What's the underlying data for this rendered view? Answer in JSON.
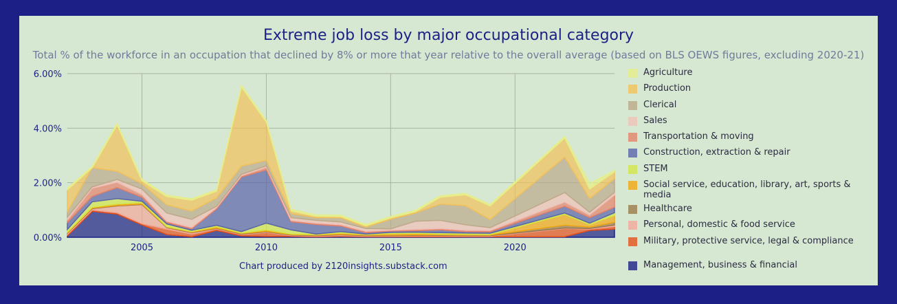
{
  "chart_data": {
    "type": "area",
    "title": "Extreme job loss by major occupational category",
    "subtitle": "Total % of the workforce in an occupation that declined by 8% or more that year relative to the overall average (based on BLS OEWS figures, excluding 2020-21)",
    "credit": "Chart produced by 2120insights.substack.com",
    "x": [
      2002,
      2003,
      2004,
      2005,
      2006,
      2007,
      2008,
      2009,
      2010,
      2011,
      2012,
      2013,
      2014,
      2015,
      2016,
      2017,
      2018,
      2019,
      2022,
      2023,
      2024
    ],
    "xticks": [
      "2005",
      "2010",
      "2015",
      "2020"
    ],
    "xtick_values": [
      2005,
      2010,
      2015,
      2020
    ],
    "xlim": [
      2002,
      2024
    ],
    "ylim": [
      0,
      6
    ],
    "yticks": [
      "0.00%",
      "2.00%",
      "4.00%",
      "6.00%"
    ],
    "ytick_values": [
      0,
      2,
      4,
      6
    ],
    "stacked": true,
    "legend_position": "right",
    "series": [
      {
        "name": "Management, business & financial",
        "color": "#1b1f86",
        "values": [
          0.05,
          0.95,
          0.85,
          0.45,
          0.1,
          0.02,
          0.25,
          0.05,
          0.03,
          0.03,
          0.02,
          0.03,
          0.02,
          0.02,
          0.02,
          0.02,
          0.02,
          0.02,
          0.02,
          0.25,
          0.3
        ]
      },
      {
        "name": "Military, protective service, legal & compliance",
        "color": "#e5501b",
        "values": [
          0.05,
          0.05,
          0.05,
          0.05,
          0.2,
          0.1,
          0.05,
          0.05,
          0.15,
          0.03,
          0.02,
          0.03,
          0.02,
          0.02,
          0.03,
          0.03,
          0.02,
          0.02,
          0.3,
          0.05,
          0.1
        ]
      },
      {
        "name": "Personal, domestic & food service",
        "color": "#f2a89a",
        "values": [
          0.05,
          0.05,
          0.25,
          0.7,
          0.05,
          0.05,
          0.02,
          0.02,
          0.02,
          0.02,
          0.02,
          0.03,
          0.02,
          0.02,
          0.02,
          0.02,
          0.02,
          0.02,
          0.02,
          0.02,
          0.05
        ]
      },
      {
        "name": "Healthcare",
        "color": "#9b7a4a",
        "values": [
          0.02,
          0.02,
          0.02,
          0.02,
          0.02,
          0.02,
          0.02,
          0.02,
          0.02,
          0.02,
          0.02,
          0.02,
          0.02,
          0.02,
          0.02,
          0.02,
          0.02,
          0.02,
          0.1,
          0.05,
          0.1
        ]
      },
      {
        "name": "Social service, education, library, art, sports & media",
        "color": "#f2a612",
        "values": [
          0.02,
          0.03,
          0.05,
          0.05,
          0.02,
          0.02,
          0.05,
          0.02,
          0.05,
          0.02,
          0.02,
          0.05,
          0.02,
          0.05,
          0.05,
          0.03,
          0.03,
          0.02,
          0.4,
          0.1,
          0.25
        ]
      },
      {
        "name": "STEM",
        "color": "#d2e64a",
        "values": [
          0.1,
          0.2,
          0.2,
          0.05,
          0.1,
          0.05,
          0.05,
          0.05,
          0.25,
          0.15,
          0.02,
          0.05,
          0.02,
          0.05,
          0.05,
          0.05,
          0.05,
          0.05,
          0.05,
          0.05,
          0.1
        ]
      },
      {
        "name": "Construction, extraction & repair",
        "color": "#5a64aa",
        "values": [
          0.25,
          0.2,
          0.4,
          0.15,
          0.05,
          0.05,
          0.6,
          2.0,
          1.95,
          0.3,
          0.35,
          0.2,
          0.05,
          0.05,
          0.05,
          0.1,
          0.05,
          0.05,
          0.25,
          0.2,
          0.2
        ]
      },
      {
        "name": "Transportation & moving",
        "color": "#e5826a",
        "values": [
          0.1,
          0.3,
          0.2,
          0.1,
          0.05,
          0.05,
          0.05,
          0.05,
          0.1,
          0.05,
          0.05,
          0.05,
          0.05,
          0.03,
          0.05,
          0.05,
          0.05,
          0.05,
          0.15,
          0.1,
          0.45
        ]
      },
      {
        "name": "Sales",
        "color": "#f0c0b8",
        "values": [
          0.1,
          0.05,
          0.1,
          0.2,
          0.3,
          0.3,
          0.05,
          0.05,
          0.05,
          0.1,
          0.1,
          0.1,
          0.1,
          0.05,
          0.3,
          0.3,
          0.2,
          0.1,
          0.35,
          0.1,
          0.1
        ]
      },
      {
        "name": "Clerical",
        "color": "#bca98a",
        "values": [
          0.2,
          0.7,
          0.3,
          0.2,
          0.3,
          0.3,
          0.3,
          0.3,
          0.2,
          0.15,
          0.1,
          0.15,
          0.05,
          0.35,
          0.3,
          0.6,
          0.7,
          0.3,
          1.3,
          0.5,
          0.5
        ]
      },
      {
        "name": "Production",
        "color": "#f2c15a",
        "values": [
          0.8,
          0.0,
          1.7,
          0.1,
          0.3,
          0.4,
          0.25,
          2.9,
          1.4,
          0.1,
          0.05,
          0.05,
          0.05,
          0.05,
          0.05,
          0.25,
          0.4,
          0.5,
          0.7,
          0.35,
          0.25
        ]
      },
      {
        "name": "Agriculture",
        "color": "#e6ee88",
        "values": [
          0.05,
          0.05,
          0.05,
          0.05,
          0.05,
          0.05,
          0.05,
          0.05,
          0.05,
          0.05,
          0.05,
          0.05,
          0.05,
          0.05,
          0.05,
          0.05,
          0.05,
          0.05,
          0.05,
          0.2,
          0.05
        ]
      }
    ]
  }
}
